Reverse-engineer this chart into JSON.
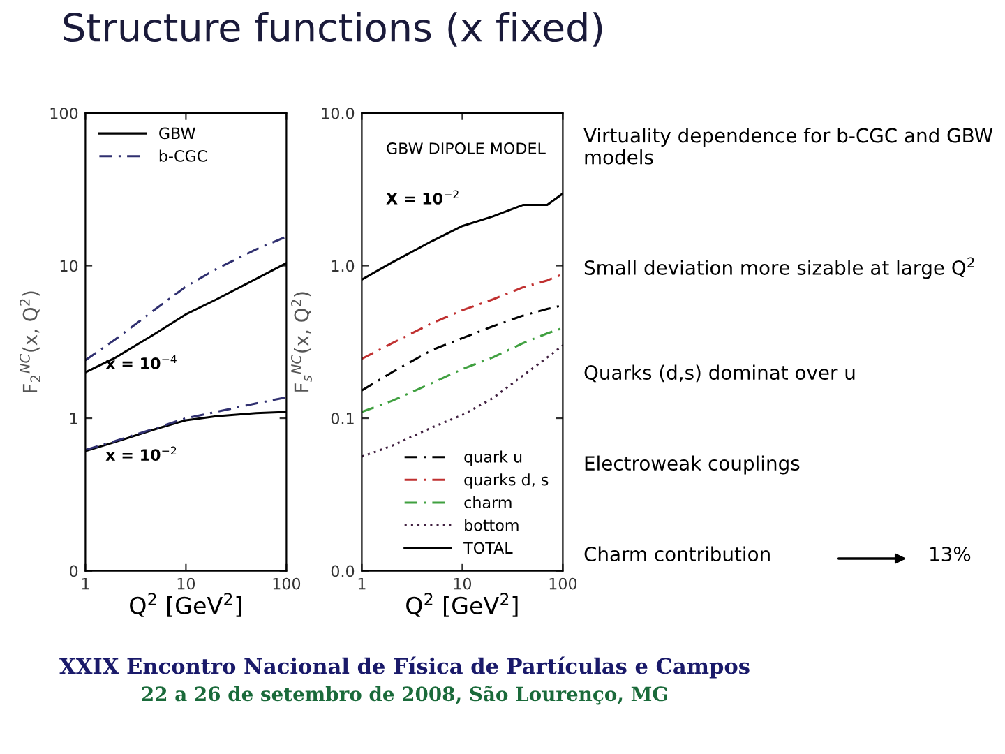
{
  "chart_data": [
    {
      "type": "line",
      "xlabel": "Q$^{2}$ [GeV$^{2}$]",
      "ylabel": "F$_{2}$$^{NC}$(x, Q$^{2}$)",
      "log": "xy",
      "x": [
        1,
        2,
        5,
        10,
        20,
        50,
        100
      ],
      "xlim": [
        1,
        100
      ],
      "xticks": [
        1,
        10,
        100
      ],
      "ylim": [
        0.1,
        100
      ],
      "yticks": [
        {
          "value": 0.1,
          "label": "0"
        },
        1,
        10,
        100
      ],
      "legend": "top left",
      "series": [
        {
          "name": "GBW",
          "color": "#000000",
          "line_style": "solid",
          "values": [
            2.0,
            2.5,
            3.6,
            4.8,
            6.0,
            8.2,
            10.4
          ]
        },
        {
          "name": "b-CGC",
          "color": "#303070",
          "line_style": "dashed",
          "values": [
            2.4,
            3.3,
            5.2,
            7.3,
            9.5,
            12.8,
            15.5
          ]
        },
        {
          "color": "#000000",
          "line_style": "solid",
          "values": [
            0.61,
            0.7,
            0.85,
            0.97,
            1.03,
            1.08,
            1.1
          ]
        },
        {
          "color": "#303070",
          "line_style": "dashed",
          "values": [
            0.62,
            0.71,
            0.86,
            1.0,
            1.1,
            1.25,
            1.37
          ]
        }
      ],
      "annotations": [
        "x = 10$^{−4}$",
        "x = 10$^{−2}$"
      ]
    },
    {
      "type": "line",
      "xlabel": "Q$^{2}$ [GeV$^{2}$]",
      "ylabel": "F$_{s}$$^{NC}$(x, Q$^{2}$)",
      "log": "xy",
      "x": [
        1,
        2,
        5,
        10,
        20,
        40,
        70,
        100
      ],
      "xlim": [
        1,
        100
      ],
      "xticks": [
        1,
        10,
        100
      ],
      "ylim": [
        0.01,
        10
      ],
      "yticks": [
        {
          "value": 0.01,
          "label": "0.0"
        },
        {
          "value": 0.1,
          "label": "0.1"
        },
        {
          "value": 1,
          "label": "1.0"
        },
        {
          "value": 10,
          "label": "10.0"
        }
      ],
      "legend": "bottom right",
      "series": [
        {
          "name": "quark u",
          "color": "#000000",
          "line_style": "dashed",
          "values": [
            0.152,
            0.2,
            0.28,
            0.335,
            0.4,
            0.47,
            0.52,
            0.55
          ]
        },
        {
          "name": "quarks d, s",
          "color": "#c03030",
          "line_style": "dashed",
          "values": [
            0.245,
            0.31,
            0.42,
            0.51,
            0.6,
            0.72,
            0.8,
            0.88
          ]
        },
        {
          "name": "charm",
          "color": "#40a040",
          "line_style": "dashed",
          "values": [
            0.11,
            0.13,
            0.17,
            0.21,
            0.25,
            0.31,
            0.36,
            0.39
          ]
        },
        {
          "name": "bottom",
          "color": "#402040",
          "line_style": "dotted",
          "values": [
            0.056,
            0.066,
            0.087,
            0.105,
            0.135,
            0.19,
            0.25,
            0.3
          ]
        },
        {
          "name": "TOTAL",
          "color": "#000000",
          "line_style": "solid",
          "values": [
            0.81,
            1.05,
            1.45,
            1.82,
            2.1,
            2.5,
            2.5,
            2.97
          ]
        }
      ],
      "annotations": [
        "GBW DIPOLE MODEL",
        "X = 10$^{−2}$"
      ]
    },
    {
      "type": "other",
      "title": "Structure functions (x fixed)",
      "annotations": [
        "Virtuality dependence for b-CGC and GBW models",
        "Small deviation more sizable at large Q$^{2}$",
        "Quarks (d,s) dominat over u",
        "Electroweak couplings",
        "Charm contribution",
        "13%",
        "XXIX Encontro Nacional de Física de Partículas e Campos",
        "22 a 26 de setembro de 2008, São Lourenço, MG"
      ]
    }
  ]
}
